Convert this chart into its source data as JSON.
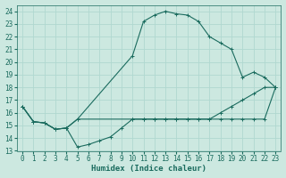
{
  "xlabel": "Humidex (Indice chaleur)",
  "bg_color": "#cce8e0",
  "grid_color": "#b0d8d0",
  "line_color": "#1a6b5e",
  "xlim": [
    -0.5,
    23.5
  ],
  "ylim": [
    13,
    24.5
  ],
  "xticks": [
    0,
    1,
    2,
    3,
    4,
    5,
    6,
    7,
    8,
    9,
    10,
    11,
    12,
    13,
    14,
    15,
    16,
    17,
    18,
    19,
    20,
    21,
    22,
    23
  ],
  "yticks": [
    13,
    14,
    15,
    16,
    17,
    18,
    19,
    20,
    21,
    22,
    23,
    24
  ],
  "line1_x": [
    0,
    1,
    2,
    3,
    4,
    5,
    6,
    7,
    8,
    9,
    10,
    11,
    12,
    13,
    14,
    15,
    16,
    17,
    18,
    19,
    20,
    21,
    22,
    23
  ],
  "line1_y": [
    16.5,
    15.3,
    15.2,
    14.7,
    14.8,
    13.3,
    13.5,
    13.8,
    14.1,
    14.8,
    15.5,
    15.5,
    15.5,
    15.5,
    15.5,
    15.5,
    15.5,
    15.5,
    15.5,
    15.5,
    15.5,
    15.5,
    15.5,
    18.0
  ],
  "line2_x": [
    0,
    1,
    2,
    3,
    4,
    5,
    10,
    11,
    12,
    13,
    14,
    15,
    16,
    17,
    18,
    19,
    20,
    21,
    22,
    23
  ],
  "line2_y": [
    16.5,
    15.3,
    15.2,
    14.7,
    14.8,
    15.5,
    20.5,
    23.2,
    23.7,
    24.0,
    23.8,
    23.7,
    23.2,
    22.0,
    21.5,
    21.0,
    18.8,
    19.2,
    18.8,
    18.0
  ],
  "line3_x": [
    0,
    1,
    2,
    3,
    4,
    5,
    10,
    11,
    12,
    13,
    14,
    15,
    16,
    17,
    18,
    19,
    20,
    21,
    22,
    23
  ],
  "line3_y": [
    16.5,
    15.3,
    15.2,
    14.7,
    14.8,
    15.5,
    15.5,
    15.5,
    15.5,
    15.5,
    15.5,
    15.5,
    15.5,
    15.5,
    16.0,
    16.5,
    17.0,
    17.5,
    18.0,
    18.0
  ]
}
